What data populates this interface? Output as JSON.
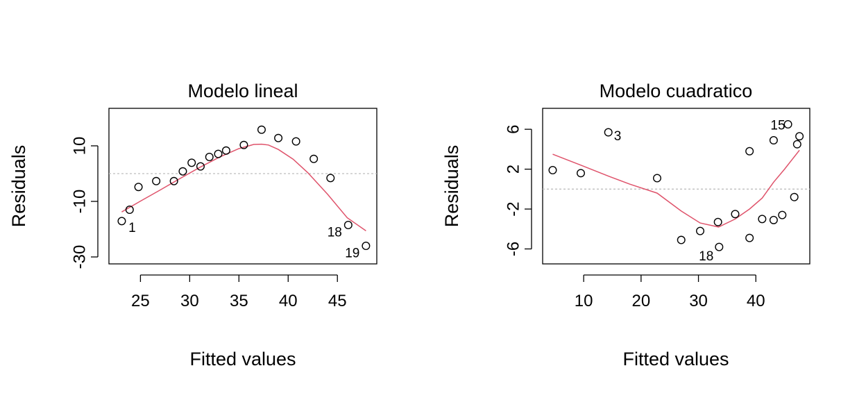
{
  "colors": {
    "smooth": "#DF536B",
    "zero_line": "#BEBEBE",
    "points": "#000000"
  },
  "chart_data": [
    {
      "type": "scatter",
      "title": "Modelo lineal",
      "xlabel": "Fitted values",
      "ylabel": "Residuals",
      "xlim": [
        21.8,
        49.0
      ],
      "ylim": [
        -32.5,
        23.5
      ],
      "xticks": [
        25,
        30,
        35,
        40,
        45
      ],
      "yticks": [
        -30,
        -10,
        10
      ],
      "reference_line_y": 0,
      "points": [
        {
          "x": 23.1,
          "y": -17.1,
          "label": "1"
        },
        {
          "x": 23.9,
          "y": -13.0,
          "label": ""
        },
        {
          "x": 24.8,
          "y": -4.8,
          "label": ""
        },
        {
          "x": 26.6,
          "y": -2.7,
          "label": ""
        },
        {
          "x": 28.4,
          "y": -2.7,
          "label": ""
        },
        {
          "x": 29.3,
          "y": 0.8,
          "label": ""
        },
        {
          "x": 30.2,
          "y": 3.9,
          "label": ""
        },
        {
          "x": 31.1,
          "y": 2.6,
          "label": ""
        },
        {
          "x": 32.0,
          "y": 6.0,
          "label": ""
        },
        {
          "x": 32.9,
          "y": 7.1,
          "label": ""
        },
        {
          "x": 33.7,
          "y": 8.3,
          "label": ""
        },
        {
          "x": 35.5,
          "y": 10.3,
          "label": ""
        },
        {
          "x": 37.3,
          "y": 15.8,
          "label": ""
        },
        {
          "x": 39.0,
          "y": 12.8,
          "label": ""
        },
        {
          "x": 40.8,
          "y": 11.6,
          "label": ""
        },
        {
          "x": 42.6,
          "y": 5.3,
          "label": ""
        },
        {
          "x": 44.3,
          "y": -1.6,
          "label": ""
        },
        {
          "x": 46.1,
          "y": -18.5,
          "label": "18"
        },
        {
          "x": 47.9,
          "y": -26.0,
          "label": "19"
        }
      ],
      "smooth": {
        "x": [
          23.1,
          25.0,
          27.0,
          29.0,
          31.0,
          33.0,
          35.0,
          36.5,
          37.3,
          38.0,
          39.0,
          40.5,
          42.0,
          44.0,
          46.0,
          47.9
        ],
        "y": [
          -13.8,
          -9.9,
          -5.9,
          -1.8,
          2.2,
          5.9,
          9.0,
          10.5,
          10.6,
          10.3,
          8.7,
          5.2,
          0.3,
          -7.4,
          -15.9,
          -20.6
        ]
      }
    },
    {
      "type": "scatter",
      "title": "Modelo cuadratico",
      "xlabel": "Fitted values",
      "ylabel": "Residuals",
      "xlim": [
        2.85,
        49.4
      ],
      "ylim": [
        -7.5,
        8.1
      ],
      "xticks": [
        10,
        20,
        30,
        40
      ],
      "yticks": [
        -6,
        -2,
        2,
        6
      ],
      "reference_line_y": 0,
      "points": [
        {
          "x": 4.6,
          "y": 1.9,
          "label": ""
        },
        {
          "x": 9.5,
          "y": 1.6,
          "label": ""
        },
        {
          "x": 14.3,
          "y": 5.7,
          "label": "3"
        },
        {
          "x": 22.8,
          "y": 1.1,
          "label": ""
        },
        {
          "x": 27.0,
          "y": -5.1,
          "label": ""
        },
        {
          "x": 30.3,
          "y": -4.2,
          "label": ""
        },
        {
          "x": 33.4,
          "y": -3.3,
          "label": ""
        },
        {
          "x": 33.6,
          "y": -5.8,
          "label": "18"
        },
        {
          "x": 36.4,
          "y": -2.5,
          "label": ""
        },
        {
          "x": 38.9,
          "y": 3.8,
          "label": ""
        },
        {
          "x": 38.9,
          "y": -4.9,
          "label": ""
        },
        {
          "x": 41.1,
          "y": -3.0,
          "label": ""
        },
        {
          "x": 43.1,
          "y": 4.9,
          "label": ""
        },
        {
          "x": 43.1,
          "y": -3.1,
          "label": ""
        },
        {
          "x": 44.6,
          "y": -2.6,
          "label": ""
        },
        {
          "x": 45.6,
          "y": 6.5,
          "label": "15"
        },
        {
          "x": 46.7,
          "y": -0.8,
          "label": ""
        },
        {
          "x": 47.2,
          "y": 4.5,
          "label": ""
        },
        {
          "x": 47.6,
          "y": 5.3,
          "label": ""
        }
      ],
      "smooth": {
        "x": [
          4.6,
          9.5,
          14.3,
          18.0,
          22.8,
          27.0,
          30.3,
          33.5,
          36.4,
          38.9,
          41.1,
          43.1,
          45.0,
          47.6
        ],
        "y": [
          3.5,
          2.4,
          1.3,
          0.5,
          -0.4,
          -2.2,
          -3.4,
          -3.8,
          -3.0,
          -2.0,
          -0.9,
          0.7,
          2.0,
          3.9
        ]
      }
    }
  ]
}
